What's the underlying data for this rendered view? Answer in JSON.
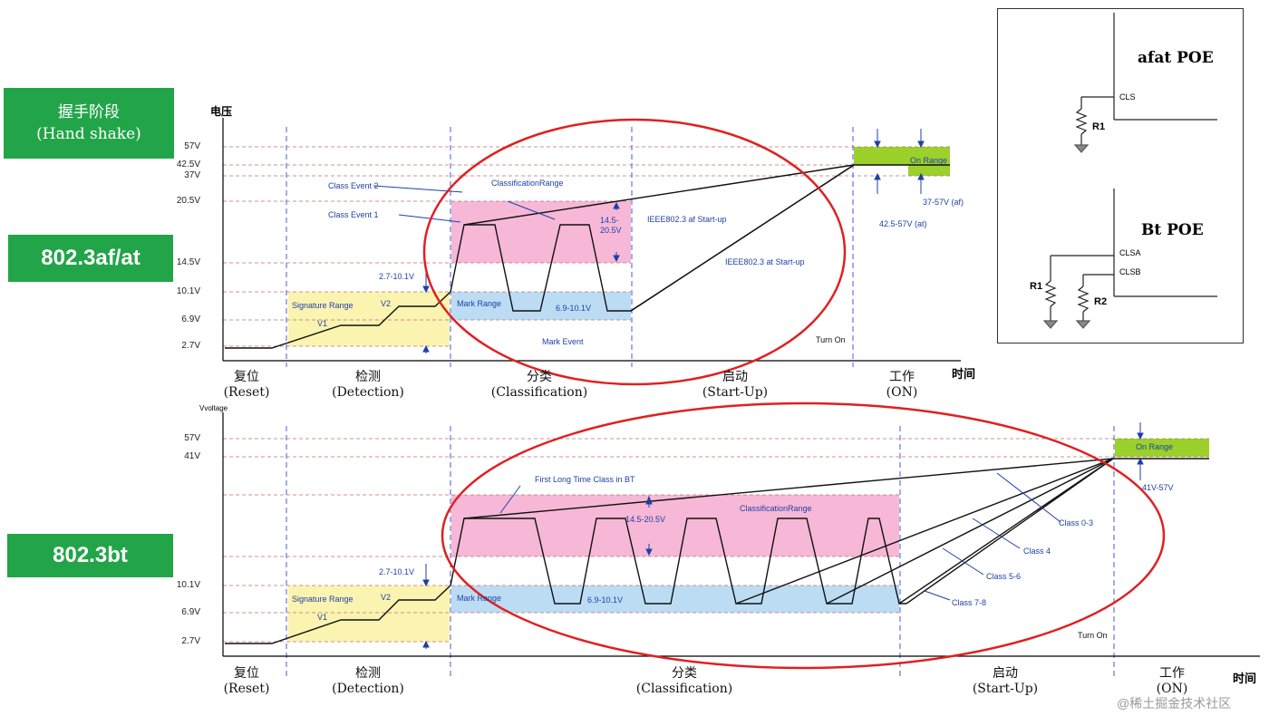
{
  "handshake_box": {
    "line1": "握手阶段",
    "line2": "(Hand shake)"
  },
  "std_afat": "802.3af/at",
  "std_bt": "802.3bt",
  "top_chart": {
    "y_axis_label": "电压",
    "x_axis_label": "时间",
    "ticks": [
      "57V",
      "42.5V",
      "37V",
      "20.5V",
      "14.5V",
      "10.1V",
      "6.9V",
      "2.7V"
    ],
    "phases": [
      {
        "cn": "复位",
        "en": "(Reset)"
      },
      {
        "cn": "检测",
        "en": "(Detection)"
      },
      {
        "cn": "分类",
        "en": "(Classification)"
      },
      {
        "cn": "启动",
        "en": "(Start-Up)"
      },
      {
        "cn": "工作",
        "en": "(ON)"
      }
    ],
    "annotations": {
      "signature_range": "Signature Range",
      "v1": "V1",
      "v2": "V2",
      "range_27_10": "2.7-10.1V",
      "class_event_2": "Class Event 2",
      "class_event_1": "Class Event 1",
      "classification_range": "ClassificationRange",
      "range_145_205": "14.5-20.5V",
      "mark_range": "Mark Range",
      "range_69_10": "6.9-10.1V",
      "mark_event": "Mark Event",
      "ieee_at": "IEEE802.3 af Start-up",
      "ieee_at2": "IEEE802.3 at Start-up",
      "on_range": "On Range",
      "range_37_57": "37-57V (af)",
      "range_425_57": "42.5-57V (at)",
      "turn_on": "Turn On"
    }
  },
  "bottom_chart": {
    "y_axis_label": "Vvoltage",
    "x_axis_label": "时间",
    "ticks": [
      "57V",
      "41V",
      "10.1V",
      "6.9V",
      "2.7V"
    ],
    "phases": [
      {
        "cn": "复位",
        "en": "(Reset)"
      },
      {
        "cn": "检测",
        "en": "(Detection)"
      },
      {
        "cn": "分类",
        "en": "(Classification)"
      },
      {
        "cn": "启动",
        "en": "(Start-Up)"
      },
      {
        "cn": "工作",
        "en": "(ON)"
      }
    ],
    "annotations": {
      "signature_range": "Signature Range",
      "v1": "V1",
      "v2": "V2",
      "range_27_10": "2.7-10.1V",
      "first_long": "First Long Time Class in BT",
      "classification_range": "ClassificationRange",
      "range_145_205": "14.5-20.5V",
      "mark_range": "Mark Range",
      "range_69_10": "6.9-10.1V",
      "on_range": "On Range",
      "range_41_57": "41V-57V",
      "class_03": "Class 0-3",
      "class_4": "Class 4",
      "class_56": "Class 5-6",
      "class_78": "Class 7-8",
      "turn_on": "Turn On"
    }
  },
  "inset": {
    "afat_title": "afat POE",
    "cls": "CLS",
    "r1": "R1",
    "bt_title": "Bt POE",
    "clsa": "CLSA",
    "clsb": "CLSB",
    "bt_r1": "R1",
    "bt_r2": "R2"
  },
  "watermark": "@稀土掘金技术社区",
  "colors": {
    "green": "#22a549",
    "pink": "#f6b8d6",
    "blue": "#bcdcf4",
    "yellow": "#fbf4b0",
    "red": "#e02020",
    "lime": "#9bd12a"
  }
}
